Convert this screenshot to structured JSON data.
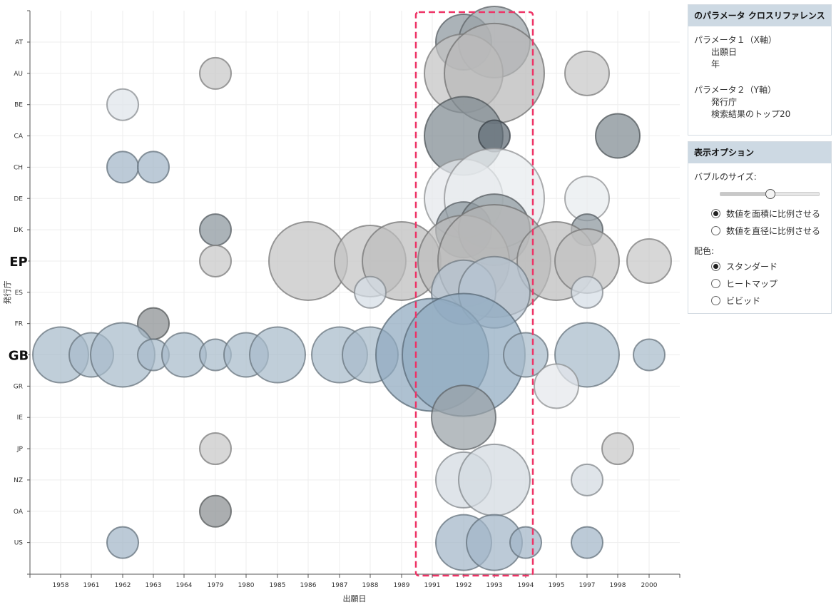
{
  "chart_data": {
    "type": "bubble",
    "xlabel": "出願日",
    "ylabel": "発行庁",
    "x_categories": [
      "1958",
      "1961",
      "1962",
      "1963",
      "1964",
      "1979",
      "1980",
      "1985",
      "1986",
      "1987",
      "1988",
      "1989",
      "1991",
      "1992",
      "1993",
      "1994",
      "1995",
      "1997",
      "1998",
      "2000"
    ],
    "y_categories": [
      "AT",
      "AU",
      "BE",
      "CA",
      "CH",
      "DE",
      "DK",
      "EP",
      "ES",
      "FR",
      "GB",
      "GR",
      "IE",
      "JP",
      "NZ",
      "OA",
      "US"
    ],
    "emphasized_y_labels": [
      "EP",
      "GB"
    ],
    "highlight_range": [
      "1991",
      "1994"
    ],
    "bubbles": [
      {
        "x": "1992",
        "y": "AT",
        "r": 39,
        "color": "#8a959c"
      },
      {
        "x": "1993",
        "y": "AT",
        "r": 50,
        "color": "#9aa2a8"
      },
      {
        "x": "1979",
        "y": "AU",
        "r": 22,
        "color": "#c8c8c8"
      },
      {
        "x": "1992",
        "y": "AU",
        "r": 55,
        "color": "#c3c3c3"
      },
      {
        "x": "1993",
        "y": "AU",
        "r": 70,
        "color": "#b8b8b8"
      },
      {
        "x": "1997",
        "y": "AU",
        "r": 31,
        "color": "#c8c8c8"
      },
      {
        "x": "1962",
        "y": "BE",
        "r": 22,
        "color": "#dfe5ea"
      },
      {
        "x": "1992",
        "y": "CA",
        "r": 55,
        "color": "#7f8a91"
      },
      {
        "x": "1993",
        "y": "CA",
        "r": 22,
        "color": "#5f6b74"
      },
      {
        "x": "1998",
        "y": "CA",
        "r": 31,
        "color": "#7f8a91"
      },
      {
        "x": "1962",
        "y": "CH",
        "r": 22,
        "color": "#a2b6c8"
      },
      {
        "x": "1963",
        "y": "CH",
        "r": 22,
        "color": "#a2b6c8"
      },
      {
        "x": "1992",
        "y": "DE",
        "r": 55,
        "color": "#e4e8eb"
      },
      {
        "x": "1993",
        "y": "DE",
        "r": 70,
        "color": "#e8ecef"
      },
      {
        "x": "1997",
        "y": "DE",
        "r": 31,
        "color": "#e8ecef"
      },
      {
        "x": "1979",
        "y": "DK",
        "r": 22,
        "color": "#8a959c"
      },
      {
        "x": "1992",
        "y": "DK",
        "r": 39,
        "color": "#8a959c"
      },
      {
        "x": "1993",
        "y": "DK",
        "r": 50,
        "color": "#8e989e"
      },
      {
        "x": "1997",
        "y": "DK",
        "r": 22,
        "color": "#8a959c"
      },
      {
        "x": "1979",
        "y": "EP",
        "r": 22,
        "color": "#c8c8c8"
      },
      {
        "x": "1986",
        "y": "EP",
        "r": 55,
        "color": "#c4c4c4"
      },
      {
        "x": "1988",
        "y": "EP",
        "r": 50,
        "color": "#c4c4c4"
      },
      {
        "x": "1989",
        "y": "EP",
        "r": 55,
        "color": "#bdbdbd"
      },
      {
        "x": "1992",
        "y": "EP",
        "r": 64,
        "color": "#bdbdbd"
      },
      {
        "x": "1993",
        "y": "EP",
        "r": 79,
        "color": "#b8b8b8"
      },
      {
        "x": "1995",
        "y": "EP",
        "r": 55,
        "color": "#bdbdbd"
      },
      {
        "x": "1997",
        "y": "EP",
        "r": 45,
        "color": "#c0c0c0"
      },
      {
        "x": "2000",
        "y": "EP",
        "r": 31,
        "color": "#c8c8c8"
      },
      {
        "x": "1988",
        "y": "ES",
        "r": 22,
        "color": "#d5dee6"
      },
      {
        "x": "1992",
        "y": "ES",
        "r": 45,
        "color": "#b5c4d1"
      },
      {
        "x": "1993",
        "y": "ES",
        "r": 50,
        "color": "#b5c4d1"
      },
      {
        "x": "1997",
        "y": "ES",
        "r": 22,
        "color": "#d5dee6"
      },
      {
        "x": "1963",
        "y": "FR",
        "r": 22,
        "color": "#8a8f92"
      },
      {
        "x": "1958",
        "y": "GB",
        "r": 39,
        "color": "#a7bbcb"
      },
      {
        "x": "1961",
        "y": "GB",
        "r": 31,
        "color": "#a7bbcb"
      },
      {
        "x": "1962",
        "y": "GB",
        "r": 45,
        "color": "#a7bbcb"
      },
      {
        "x": "1963",
        "y": "GB",
        "r": 22,
        "color": "#a7bbcb"
      },
      {
        "x": "1964",
        "y": "GB",
        "r": 31,
        "color": "#a7bbcb"
      },
      {
        "x": "1979",
        "y": "GB",
        "r": 22,
        "color": "#a7bbcb"
      },
      {
        "x": "1980",
        "y": "GB",
        "r": 31,
        "color": "#a7bbcb"
      },
      {
        "x": "1985",
        "y": "GB",
        "r": 39,
        "color": "#a7bbcb"
      },
      {
        "x": "1987",
        "y": "GB",
        "r": 39,
        "color": "#a7bbcb"
      },
      {
        "x": "1988",
        "y": "GB",
        "r": 39,
        "color": "#a7bbcb"
      },
      {
        "x": "1991",
        "y": "GB",
        "r": 79,
        "color": "#8fa9bf"
      },
      {
        "x": "1992",
        "y": "GB",
        "r": 86,
        "color": "#90aac0"
      },
      {
        "x": "1994",
        "y": "GB",
        "r": 31,
        "color": "#a7bbcb"
      },
      {
        "x": "1997",
        "y": "GB",
        "r": 45,
        "color": "#a7bbcb"
      },
      {
        "x": "2000",
        "y": "GB",
        "r": 22,
        "color": "#a7bbcb"
      },
      {
        "x": "1995",
        "y": "GR",
        "r": 31,
        "color": "#e4e8eb"
      },
      {
        "x": "1992",
        "y": "IE",
        "r": 45,
        "color": "#9aa2a8"
      },
      {
        "x": "1979",
        "y": "JP",
        "r": 22,
        "color": "#c8c8c8"
      },
      {
        "x": "1998",
        "y": "JP",
        "r": 22,
        "color": "#c8c8c8"
      },
      {
        "x": "1992",
        "y": "NZ",
        "r": 39,
        "color": "#d2dae0"
      },
      {
        "x": "1993",
        "y": "NZ",
        "r": 50,
        "color": "#d2dae0"
      },
      {
        "x": "1997",
        "y": "NZ",
        "r": 22,
        "color": "#d2dae0"
      },
      {
        "x": "1979",
        "y": "OA",
        "r": 22,
        "color": "#8a8f92"
      },
      {
        "x": "1962",
        "y": "US",
        "r": 22,
        "color": "#a2b6c8"
      },
      {
        "x": "1992",
        "y": "US",
        "r": 39,
        "color": "#a2b6c8"
      },
      {
        "x": "1993",
        "y": "US",
        "r": 39,
        "color": "#a2b6c8"
      },
      {
        "x": "1994",
        "y": "US",
        "r": 22,
        "color": "#a2b6c8"
      },
      {
        "x": "1997",
        "y": "US",
        "r": 22,
        "color": "#a2b6c8"
      }
    ],
    "grid": true
  },
  "colors": {
    "highlight_box": "#ee3366",
    "panel_header_bg": "#cdd9e3",
    "grid": "#eeeeee"
  },
  "panels": {
    "cross_ref": {
      "title": "のパラメータ クロスリファレンス",
      "param1_title": "パラメータ１（X軸）",
      "param1_line1": "出願日",
      "param1_line2": "年",
      "param2_title": "パラメータ２（Y軸）",
      "param2_line1": "発行庁",
      "param2_line2": "検索結果のトップ20"
    },
    "display_options": {
      "title": "表示オプション",
      "bubble_size_label": "バブルのサイズ:",
      "slider_value": 0.5,
      "size_options": [
        {
          "label": "数値を面積に比例させる",
          "checked": true
        },
        {
          "label": "数値を直径に比例させる",
          "checked": false
        }
      ],
      "color_label": "配色:",
      "color_options": [
        {
          "label": "スタンダード",
          "checked": true
        },
        {
          "label": "ヒートマップ",
          "checked": false
        },
        {
          "label": "ビビッド",
          "checked": false
        }
      ]
    }
  }
}
